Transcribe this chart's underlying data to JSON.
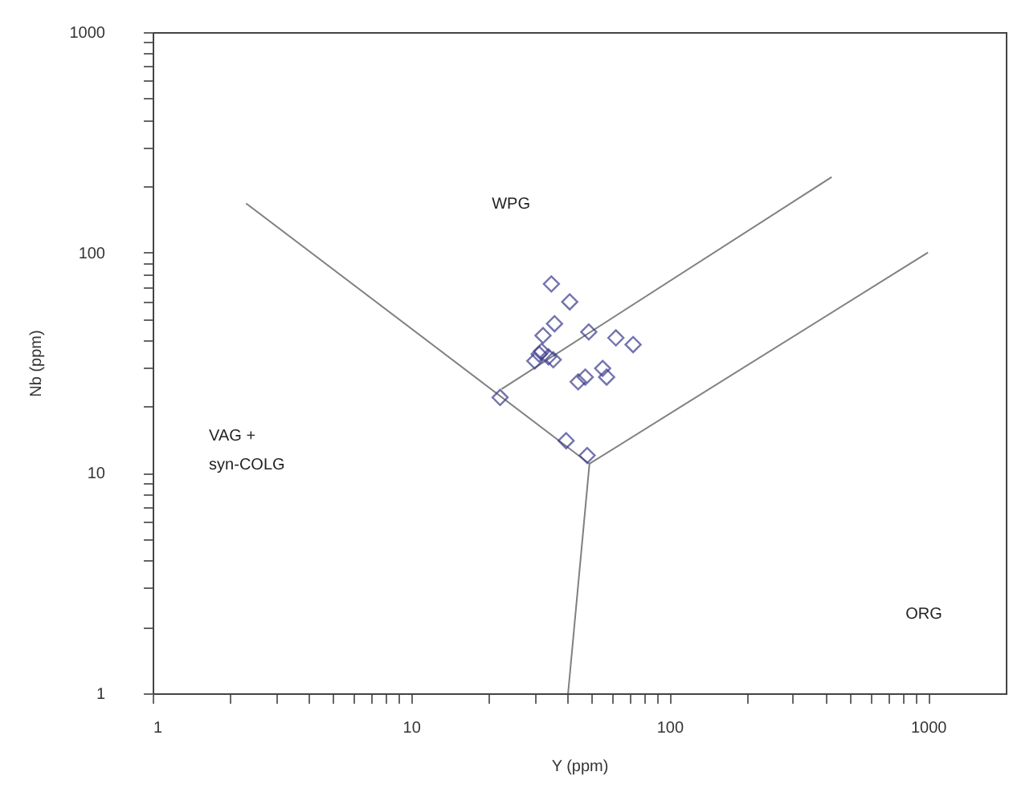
{
  "chart_data": {
    "type": "scatter",
    "xlabel": "Y (ppm)",
    "ylabel": "Nb (ppm)",
    "log": "xy",
    "grid": false,
    "xlim": [
      1,
      2000
    ],
    "ylim": [
      1,
      1000
    ],
    "xticks": [
      1,
      {
        "value": 2,
        "label": null
      },
      {
        "value": 3,
        "label": null
      },
      {
        "value": 4,
        "label": null
      },
      {
        "value": 5,
        "label": null
      },
      {
        "value": 6,
        "label": null
      },
      {
        "value": 7,
        "label": null
      },
      {
        "value": 8,
        "label": null
      },
      {
        "value": 9,
        "label": null
      },
      10,
      {
        "value": 20,
        "label": null
      },
      {
        "value": 30,
        "label": null
      },
      {
        "value": 40,
        "label": null
      },
      {
        "value": 50,
        "label": null
      },
      {
        "value": 60,
        "label": null
      },
      {
        "value": 70,
        "label": null
      },
      {
        "value": 80,
        "label": null
      },
      {
        "value": 90,
        "label": null
      },
      100,
      {
        "value": 200,
        "label": null
      },
      {
        "value": 300,
        "label": null
      },
      {
        "value": 400,
        "label": null
      },
      {
        "value": 500,
        "label": null
      },
      {
        "value": 600,
        "label": null
      },
      {
        "value": 700,
        "label": null
      },
      {
        "value": 800,
        "label": null
      },
      {
        "value": 900,
        "label": null
      },
      1000
    ],
    "yticks": [
      1,
      {
        "value": 2,
        "label": null
      },
      {
        "value": 3,
        "label": null
      },
      {
        "value": 4,
        "label": null
      },
      {
        "value": 5,
        "label": null
      },
      {
        "value": 6,
        "label": null
      },
      {
        "value": 7,
        "label": null
      },
      {
        "value": 8,
        "label": null
      },
      {
        "value": 9,
        "label": null
      },
      10,
      {
        "value": 20,
        "label": null
      },
      {
        "value": 30,
        "label": null
      },
      {
        "value": 40,
        "label": null
      },
      {
        "value": 50,
        "label": null
      },
      {
        "value": 60,
        "label": null
      },
      {
        "value": 70,
        "label": null
      },
      {
        "value": 80,
        "label": null
      },
      {
        "value": 90,
        "label": null
      },
      100,
      {
        "value": 200,
        "label": null
      },
      {
        "value": 300,
        "label": null
      },
      {
        "value": 400,
        "label": null
      },
      {
        "value": 500,
        "label": null
      },
      {
        "value": 600,
        "label": null
      },
      {
        "value": 700,
        "label": null
      },
      {
        "value": 800,
        "label": null
      },
      {
        "value": 900,
        "label": null
      },
      1000
    ],
    "series": [
      {
        "type": "line",
        "color": "#808080",
        "marker": "none",
        "line_style": "solid",
        "x": [
          2.3,
          49
        ],
        "values": [
          167,
          11
        ]
      },
      {
        "type": "line",
        "color": "#808080",
        "marker": "none",
        "line_style": "solid",
        "x": [
          22.4,
          424
        ],
        "values": [
          24,
          220
        ]
      },
      {
        "type": "line",
        "color": "#808080",
        "marker": "none",
        "line_style": "solid",
        "x": [
          49,
          1000
        ],
        "values": [
          11,
          100
        ]
      },
      {
        "type": "line",
        "color": "#808080",
        "marker": "none",
        "line_style": "solid",
        "x": [
          49,
          40.5
        ],
        "values": [
          11,
          1
        ]
      },
      {
        "color": "#3a3a8c",
        "marker": "diamond",
        "x": [
          34.9,
          41.1,
          35.9,
          48.7,
          62,
          72.3,
          32.4,
          31.3,
          34,
          30.1,
          35.5,
          32,
          55.1,
          57.1,
          47.2,
          44.3,
          22.1,
          39.8,
          48
        ],
        "values": [
          72,
          59.7,
          47.5,
          43.6,
          41,
          38.2,
          42,
          34.6,
          33.6,
          32.2,
          32.6,
          35.6,
          29.8,
          27.2,
          27.2,
          25.9,
          22,
          14,
          12
        ]
      }
    ],
    "annotations": [
      "WPG",
      "VAG +\nsyn-COLG",
      "ORG"
    ]
  }
}
